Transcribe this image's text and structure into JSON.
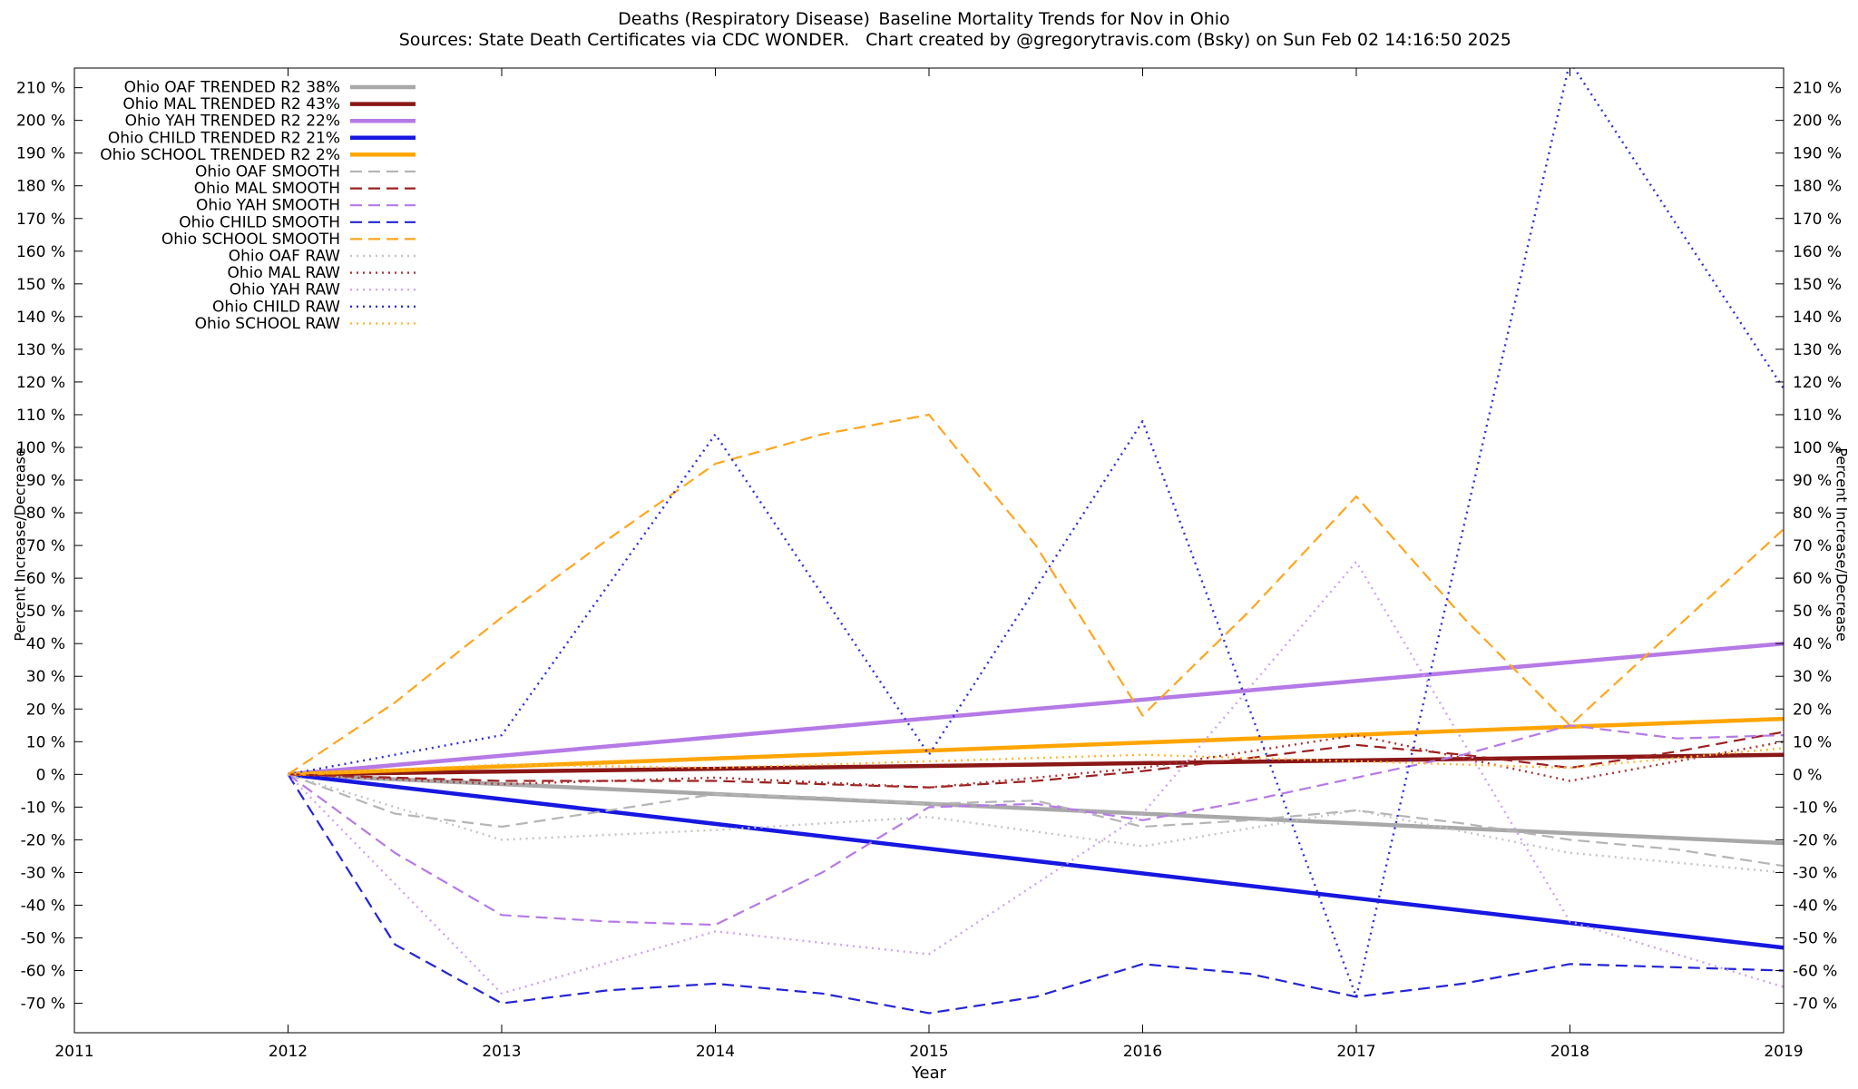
{
  "chart_data": {
    "type": "line",
    "titles": {
      "line1_left": "Deaths (Respiratory Disease)",
      "line1_right": "Baseline Mortality Trends for Nov in Ohio",
      "line2_left": "Sources: State Death Certificates via CDC WONDER.",
      "line2_right": "Chart created by @gregorytravis.com (Bsky) on Sun Feb 02 14:16:50 2025"
    },
    "xlabel": "Year",
    "ylabel_left": "Percent Increase/Decrease",
    "ylabel_right": "Percent Increase/Decrease",
    "x_range": [
      2011,
      2019
    ],
    "y_range": [
      -79,
      216
    ],
    "x_ticks": [
      2011,
      2012,
      2013,
      2014,
      2015,
      2016,
      2017,
      2018,
      2019
    ],
    "y_ticks": [
      -70,
      -60,
      -50,
      -40,
      -30,
      -20,
      -10,
      0,
      10,
      20,
      30,
      40,
      50,
      60,
      70,
      80,
      90,
      100,
      110,
      120,
      130,
      140,
      150,
      160,
      170,
      180,
      190,
      200,
      210
    ],
    "y_tick_suffix": " %",
    "grid": false,
    "legend_position": "top-left",
    "series": [
      {
        "name": "Ohio OAF TRENDED R2  38%",
        "color": "#a8a8a8",
        "style": "solid",
        "x": [
          2012,
          2019
        ],
        "y": [
          0,
          -21
        ]
      },
      {
        "name": "Ohio MAL TRENDED R2  43%",
        "color": "#8b1717",
        "style": "solid",
        "x": [
          2012,
          2019
        ],
        "y": [
          0,
          6
        ]
      },
      {
        "name": "Ohio YAH TRENDED R2  22%",
        "color": "#b57ae6",
        "style": "solid",
        "x": [
          2012,
          2019
        ],
        "y": [
          0,
          40
        ]
      },
      {
        "name": "Ohio CHILD TRENDED R2  21%",
        "color": "#1717e0",
        "style": "solid",
        "x": [
          2012,
          2019
        ],
        "y": [
          0,
          -53
        ]
      },
      {
        "name": "Ohio SCHOOL TRENDED R2   2%",
        "color": "#ffa500",
        "style": "solid",
        "x": [
          2012,
          2019
        ],
        "y": [
          0,
          17
        ]
      },
      {
        "name": "Ohio OAF SMOOTH",
        "color": "#b5b5b5",
        "style": "dashed",
        "x": [
          2012,
          2012.5,
          2013,
          2013.5,
          2014,
          2014.5,
          2015,
          2015.5,
          2016,
          2016.5,
          2017,
          2017.5,
          2018,
          2018.5,
          2019
        ],
        "y": [
          0,
          -12,
          -16,
          -11,
          -6,
          -7,
          -9,
          -8,
          -16,
          -14,
          -11,
          -15,
          -20,
          -23,
          -28
        ]
      },
      {
        "name": "Ohio MAL SMOOTH",
        "color": "#9c2020",
        "style": "dashed",
        "x": [
          2012,
          2012.5,
          2013,
          2013.5,
          2014,
          2014.5,
          2015,
          2015.5,
          2016,
          2016.5,
          2017,
          2017.5,
          2018,
          2018.5,
          2019
        ],
        "y": [
          0,
          -1,
          -2,
          -2,
          -2,
          -3,
          -4,
          -2,
          1,
          5,
          9,
          6,
          2,
          7,
          13
        ]
      },
      {
        "name": "Ohio YAH SMOOTH",
        "color": "#b57ae6",
        "style": "dashed",
        "x": [
          2012,
          2012.5,
          2013,
          2013.5,
          2014,
          2014.5,
          2015,
          2015.5,
          2016,
          2016.5,
          2017,
          2017.5,
          2018,
          2018.5,
          2019
        ],
        "y": [
          0,
          -24,
          -43,
          -45,
          -46,
          -30,
          -10,
          -9,
          -14,
          -8,
          -1,
          6,
          15,
          11,
          12
        ]
      },
      {
        "name": "Ohio CHILD SMOOTH",
        "color": "#2424d6",
        "style": "dashed",
        "x": [
          2012,
          2012.5,
          2013,
          2013.5,
          2014,
          2014.5,
          2015,
          2015.5,
          2016,
          2016.5,
          2017,
          2017.5,
          2018,
          2018.5,
          2019
        ],
        "y": [
          0,
          -52,
          -70,
          -66,
          -64,
          -67,
          -73,
          -68,
          -58,
          -61,
          -68,
          -64,
          -58,
          -59,
          -60
        ]
      },
      {
        "name": "Ohio SCHOOL SMOOTH",
        "color": "#ffa51e",
        "style": "dashed",
        "x": [
          2012,
          2012.5,
          2013,
          2013.5,
          2014,
          2014.5,
          2015,
          2015.5,
          2016,
          2016.5,
          2017,
          2017.5,
          2018,
          2018.5,
          2019
        ],
        "y": [
          0,
          22,
          48,
          72,
          95,
          104,
          110,
          70,
          18,
          50,
          85,
          48,
          15,
          45,
          75
        ]
      },
      {
        "name": "Ohio OAF RAW",
        "color": "#c4c4c4",
        "style": "dotted",
        "x": [
          2012,
          2013,
          2014,
          2015,
          2016,
          2017,
          2018,
          2019
        ],
        "y": [
          0,
          -20,
          -17,
          -13,
          -22,
          -11,
          -24,
          -30
        ]
      },
      {
        "name": "Ohio MAL RAW",
        "color": "#a83333",
        "style": "dotted",
        "x": [
          2012,
          2013,
          2014,
          2015,
          2016,
          2017,
          2018,
          2019
        ],
        "y": [
          0,
          -3,
          -1,
          -4,
          2,
          12,
          -2,
          10
        ]
      },
      {
        "name": "Ohio YAH RAW",
        "color": "#cfa3f0",
        "style": "dotted",
        "x": [
          2012,
          2013,
          2014,
          2015,
          2016,
          2017,
          2018,
          2019
        ],
        "y": [
          0,
          -67,
          -48,
          -55,
          -12,
          65,
          -45,
          -65
        ]
      },
      {
        "name": "Ohio CHILD RAW",
        "color": "#2c2ce0",
        "style": "dotted",
        "x": [
          2012,
          2013,
          2014,
          2015,
          2016,
          2017,
          2018,
          2019
        ],
        "y": [
          0,
          12,
          104,
          6,
          108,
          -68,
          218,
          118
        ]
      },
      {
        "name": "Ohio SCHOOL RAW",
        "color": "#ffb732",
        "style": "dotted",
        "x": [
          2012,
          2013,
          2014,
          2015,
          2016,
          2017,
          2018,
          2019
        ],
        "y": [
          0,
          3,
          2,
          4,
          6,
          4,
          2,
          8
        ]
      }
    ]
  }
}
